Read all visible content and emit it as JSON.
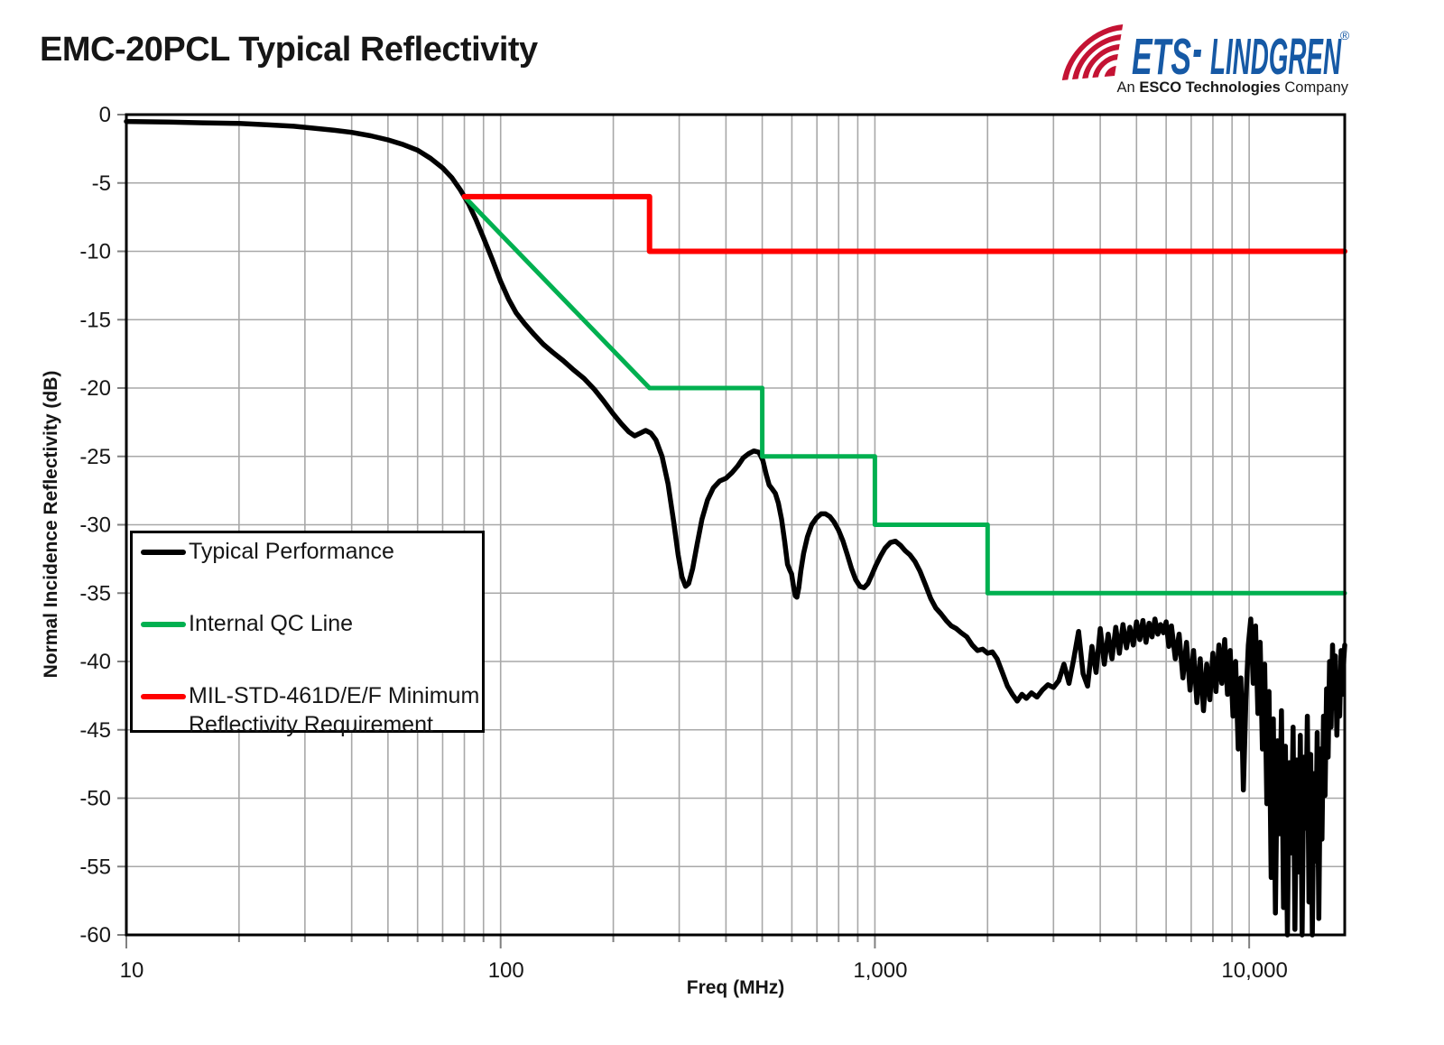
{
  "page": {
    "title": "EMC-20PCL Typical Reflectivity"
  },
  "logo": {
    "brand_left": "ETS",
    "separator": "·",
    "brand_right": "LINDGREN",
    "registered": "®",
    "tagline_prefix": "An ",
    "tagline_bold": "ESCO Technologies",
    "tagline_suffix": " Company",
    "brand_color": "#1659A5",
    "arc_color": "#C41333",
    "tagline_color": "#1a1a1a"
  },
  "chart_data": {
    "type": "line",
    "title": "EMC-20PCL Typical Reflectivity",
    "xlabel": "Freq (MHz)",
    "ylabel": "Normal Incidence Reflectivity (dB)",
    "x_scale": "log",
    "xlim": [
      10,
      18000
    ],
    "ylim": [
      -60,
      0
    ],
    "grid": true,
    "grid_color": "#A8A8A8",
    "x_ticks": [
      {
        "value": 10,
        "label": "10"
      },
      {
        "value": 100,
        "label": "100"
      },
      {
        "value": 1000,
        "label": "1,000"
      },
      {
        "value": 10000,
        "label": "10,000"
      }
    ],
    "y_ticks": [
      {
        "value": 0,
        "label": "0"
      },
      {
        "value": -5,
        "label": "-5"
      },
      {
        "value": -10,
        "label": "-10"
      },
      {
        "value": -15,
        "label": "-15"
      },
      {
        "value": -20,
        "label": "-20"
      },
      {
        "value": -25,
        "label": "-25"
      },
      {
        "value": -30,
        "label": "-30"
      },
      {
        "value": -35,
        "label": "-35"
      },
      {
        "value": -40,
        "label": "-40"
      },
      {
        "value": -45,
        "label": "-45"
      },
      {
        "value": -50,
        "label": "-50"
      },
      {
        "value": -55,
        "label": "-55"
      },
      {
        "value": -60,
        "label": "-60"
      }
    ],
    "legend": {
      "position": "inside-left",
      "items": [
        {
          "label": "Typical Performance",
          "label_lines": [
            "Typical Performance"
          ],
          "color": "#000000"
        },
        {
          "label": "Internal QC Line",
          "label_lines": [
            "Internal QC Line"
          ],
          "color": "#00B050"
        },
        {
          "label": "MIL-STD-461D/E/F Minimum Reflectivity Requirement",
          "label_lines": [
            "MIL-STD-461D/E/F Minimum",
            "Reflectivity Requirement"
          ],
          "color": "#FF0000"
        }
      ]
    },
    "series": [
      {
        "name": "Typical Performance",
        "color": "#000000",
        "width": 5.5,
        "points": [
          [
            10,
            -0.5
          ],
          [
            13,
            -0.55
          ],
          [
            16,
            -0.6
          ],
          [
            20,
            -0.65
          ],
          [
            24,
            -0.75
          ],
          [
            28,
            -0.85
          ],
          [
            32,
            -1.0
          ],
          [
            36,
            -1.15
          ],
          [
            40,
            -1.3
          ],
          [
            45,
            -1.55
          ],
          [
            50,
            -1.85
          ],
          [
            55,
            -2.2
          ],
          [
            60,
            -2.6
          ],
          [
            65,
            -3.2
          ],
          [
            70,
            -3.9
          ],
          [
            74,
            -4.6
          ],
          [
            78,
            -5.5
          ],
          [
            82,
            -6.5
          ],
          [
            86,
            -7.7
          ],
          [
            90,
            -9.0
          ],
          [
            95,
            -10.6
          ],
          [
            100,
            -12.2
          ],
          [
            105,
            -13.5
          ],
          [
            110,
            -14.5
          ],
          [
            116,
            -15.3
          ],
          [
            123,
            -16.1
          ],
          [
            130,
            -16.8
          ],
          [
            138,
            -17.4
          ],
          [
            147,
            -18.0
          ],
          [
            157,
            -18.7
          ],
          [
            167,
            -19.3
          ],
          [
            178,
            -20.1
          ],
          [
            189,
            -21.0
          ],
          [
            200,
            -21.9
          ],
          [
            210,
            -22.6
          ],
          [
            220,
            -23.2
          ],
          [
            228,
            -23.5
          ],
          [
            236,
            -23.3
          ],
          [
            244,
            -23.1
          ],
          [
            252,
            -23.3
          ],
          [
            260,
            -23.8
          ],
          [
            270,
            -25.0
          ],
          [
            280,
            -27.0
          ],
          [
            290,
            -29.8
          ],
          [
            298,
            -32.2
          ],
          [
            305,
            -33.8
          ],
          [
            312,
            -34.5
          ],
          [
            318,
            -34.3
          ],
          [
            326,
            -33.2
          ],
          [
            335,
            -31.4
          ],
          [
            345,
            -29.6
          ],
          [
            357,
            -28.2
          ],
          [
            370,
            -27.3
          ],
          [
            385,
            -26.8
          ],
          [
            400,
            -26.6
          ],
          [
            415,
            -26.2
          ],
          [
            430,
            -25.7
          ],
          [
            445,
            -25.1
          ],
          [
            460,
            -24.8
          ],
          [
            475,
            -24.6
          ],
          [
            490,
            -24.7
          ],
          [
            502,
            -25.3
          ],
          [
            512,
            -26.3
          ],
          [
            522,
            -27.1
          ],
          [
            532,
            -27.4
          ],
          [
            542,
            -27.7
          ],
          [
            552,
            -28.4
          ],
          [
            563,
            -29.6
          ],
          [
            574,
            -31.2
          ],
          [
            584,
            -32.9
          ],
          [
            592,
            -33.3
          ],
          [
            599,
            -33.6
          ],
          [
            606,
            -34.5
          ],
          [
            613,
            -35.2
          ],
          [
            619,
            -35.3
          ],
          [
            626,
            -34.6
          ],
          [
            634,
            -33.4
          ],
          [
            645,
            -32.1
          ],
          [
            660,
            -30.9
          ],
          [
            678,
            -30.0
          ],
          [
            698,
            -29.5
          ],
          [
            718,
            -29.2
          ],
          [
            738,
            -29.2
          ],
          [
            758,
            -29.4
          ],
          [
            778,
            -29.8
          ],
          [
            800,
            -30.4
          ],
          [
            822,
            -31.2
          ],
          [
            844,
            -32.2
          ],
          [
            866,
            -33.2
          ],
          [
            888,
            -34.0
          ],
          [
            912,
            -34.5
          ],
          [
            936,
            -34.6
          ],
          [
            958,
            -34.3
          ],
          [
            980,
            -33.7
          ],
          [
            1005,
            -33.0
          ],
          [
            1035,
            -32.3
          ],
          [
            1065,
            -31.7
          ],
          [
            1100,
            -31.3
          ],
          [
            1135,
            -31.2
          ],
          [
            1170,
            -31.5
          ],
          [
            1205,
            -31.9
          ],
          [
            1240,
            -32.2
          ],
          [
            1280,
            -32.7
          ],
          [
            1320,
            -33.4
          ],
          [
            1365,
            -34.4
          ],
          [
            1410,
            -35.4
          ],
          [
            1455,
            -36.1
          ],
          [
            1500,
            -36.5
          ],
          [
            1550,
            -37.0
          ],
          [
            1600,
            -37.4
          ],
          [
            1650,
            -37.6
          ],
          [
            1700,
            -37.9
          ],
          [
            1760,
            -38.2
          ],
          [
            1820,
            -38.8
          ],
          [
            1880,
            -39.2
          ],
          [
            1940,
            -39.1
          ],
          [
            2000,
            -39.4
          ],
          [
            2060,
            -39.3
          ],
          [
            2120,
            -39.8
          ],
          [
            2190,
            -40.8
          ],
          [
            2260,
            -41.8
          ],
          [
            2330,
            -42.4
          ],
          [
            2400,
            -42.9
          ],
          [
            2470,
            -42.4
          ],
          [
            2540,
            -42.7
          ],
          [
            2620,
            -42.3
          ],
          [
            2710,
            -42.6
          ],
          [
            2800,
            -42.1
          ],
          [
            2900,
            -41.7
          ],
          [
            3000,
            -41.9
          ],
          [
            3100,
            -41.4
          ],
          [
            3200,
            -40.2
          ],
          [
            3300,
            -41.6
          ],
          [
            3400,
            -39.8
          ],
          [
            3500,
            -37.8
          ],
          [
            3600,
            -40.9
          ],
          [
            3700,
            -41.8
          ],
          [
            3800,
            -38.9
          ],
          [
            3900,
            -40.8
          ],
          [
            4000,
            -37.6
          ],
          [
            4100,
            -40.2
          ],
          [
            4200,
            -38.0
          ],
          [
            4300,
            -39.8
          ],
          [
            4400,
            -37.5
          ],
          [
            4500,
            -39.4
          ],
          [
            4600,
            -37.3
          ],
          [
            4700,
            -39.0
          ],
          [
            4800,
            -37.5
          ],
          [
            4900,
            -38.8
          ],
          [
            5000,
            -37.1
          ],
          [
            5100,
            -38.4
          ],
          [
            5200,
            -37.0
          ],
          [
            5300,
            -38.6
          ],
          [
            5400,
            -37.2
          ],
          [
            5500,
            -38.2
          ],
          [
            5600,
            -36.9
          ],
          [
            5700,
            -38.0
          ],
          [
            5800,
            -37.3
          ],
          [
            5900,
            -37.9
          ],
          [
            6000,
            -37.1
          ],
          [
            6100,
            -38.9
          ],
          [
            6200,
            -37.4
          ],
          [
            6350,
            -39.8
          ],
          [
            6500,
            -38.0
          ],
          [
            6650,
            -41.2
          ],
          [
            6800,
            -38.6
          ],
          [
            6950,
            -42.1
          ],
          [
            7100,
            -39.2
          ],
          [
            7250,
            -43.0
          ],
          [
            7400,
            -39.8
          ],
          [
            7550,
            -43.6
          ],
          [
            7700,
            -40.2
          ],
          [
            7850,
            -42.8
          ],
          [
            8000,
            -39.4
          ],
          [
            8150,
            -42.2
          ],
          [
            8300,
            -38.8
          ],
          [
            8450,
            -41.6
          ],
          [
            8600,
            -38.4
          ],
          [
            8750,
            -42.4
          ],
          [
            8900,
            -39.2
          ],
          [
            9050,
            -44.0
          ],
          [
            9200,
            -40.0
          ],
          [
            9350,
            -46.4
          ],
          [
            9500,
            -41.2
          ],
          [
            9650,
            -49.4
          ],
          [
            9800,
            -42.8
          ],
          [
            9950,
            -38.8
          ],
          [
            10100,
            -36.9
          ],
          [
            10250,
            -41.6
          ],
          [
            10400,
            -37.4
          ],
          [
            10550,
            -43.8
          ],
          [
            10700,
            -38.6
          ],
          [
            10850,
            -46.4
          ],
          [
            11000,
            -40.2
          ],
          [
            11150,
            -50.4
          ],
          [
            11300,
            -42.2
          ],
          [
            11450,
            -55.8
          ],
          [
            11600,
            -44.2
          ],
          [
            11750,
            -58.4
          ],
          [
            11900,
            -45.8
          ],
          [
            12050,
            -52.6
          ],
          [
            12200,
            -43.6
          ],
          [
            12350,
            -58.0
          ],
          [
            12500,
            -46.2
          ],
          [
            12650,
            -60.0
          ],
          [
            12800,
            -47.4
          ],
          [
            12950,
            -54.0
          ],
          [
            13100,
            -44.8
          ],
          [
            13250,
            -59.6
          ],
          [
            13400,
            -47.2
          ],
          [
            13550,
            -55.4
          ],
          [
            13700,
            -45.4
          ],
          [
            13850,
            -60.0
          ],
          [
            14000,
            -47.0
          ],
          [
            14150,
            -52.2
          ],
          [
            14300,
            -44.0
          ],
          [
            14450,
            -57.6
          ],
          [
            14600,
            -46.8
          ],
          [
            14750,
            -60.0
          ],
          [
            14900,
            -48.2
          ],
          [
            15050,
            -54.6
          ],
          [
            15200,
            -45.2
          ],
          [
            15350,
            -58.8
          ],
          [
            15500,
            -46.4
          ],
          [
            15650,
            -53.0
          ],
          [
            15800,
            -44.0
          ],
          [
            15950,
            -49.8
          ],
          [
            16100,
            -42.0
          ],
          [
            16250,
            -47.0
          ],
          [
            16400,
            -40.0
          ],
          [
            16550,
            -44.8
          ],
          [
            16700,
            -38.8
          ],
          [
            16850,
            -43.4
          ],
          [
            17000,
            -39.6
          ],
          [
            17150,
            -45.4
          ],
          [
            17300,
            -40.8
          ],
          [
            17450,
            -44.0
          ],
          [
            17600,
            -39.2
          ],
          [
            17750,
            -42.4
          ],
          [
            17900,
            -39.8
          ],
          [
            18000,
            -38.8
          ]
        ]
      },
      {
        "name": "Internal QC Line",
        "color": "#00B050",
        "width": 5,
        "points": [
          [
            80,
            -6
          ],
          [
            250,
            -20
          ],
          [
            500,
            -20
          ],
          [
            500,
            -25
          ],
          [
            1000,
            -25
          ],
          [
            1000,
            -30
          ],
          [
            2000,
            -30
          ],
          [
            2000,
            -35
          ],
          [
            18000,
            -35
          ]
        ]
      },
      {
        "name": "MIL-STD-461D/E/F Minimum Reflectivity Requirement",
        "color": "#FF0000",
        "width": 6,
        "points": [
          [
            80,
            -6
          ],
          [
            250,
            -6
          ],
          [
            250,
            -10
          ],
          [
            18000,
            -10
          ]
        ]
      }
    ]
  }
}
